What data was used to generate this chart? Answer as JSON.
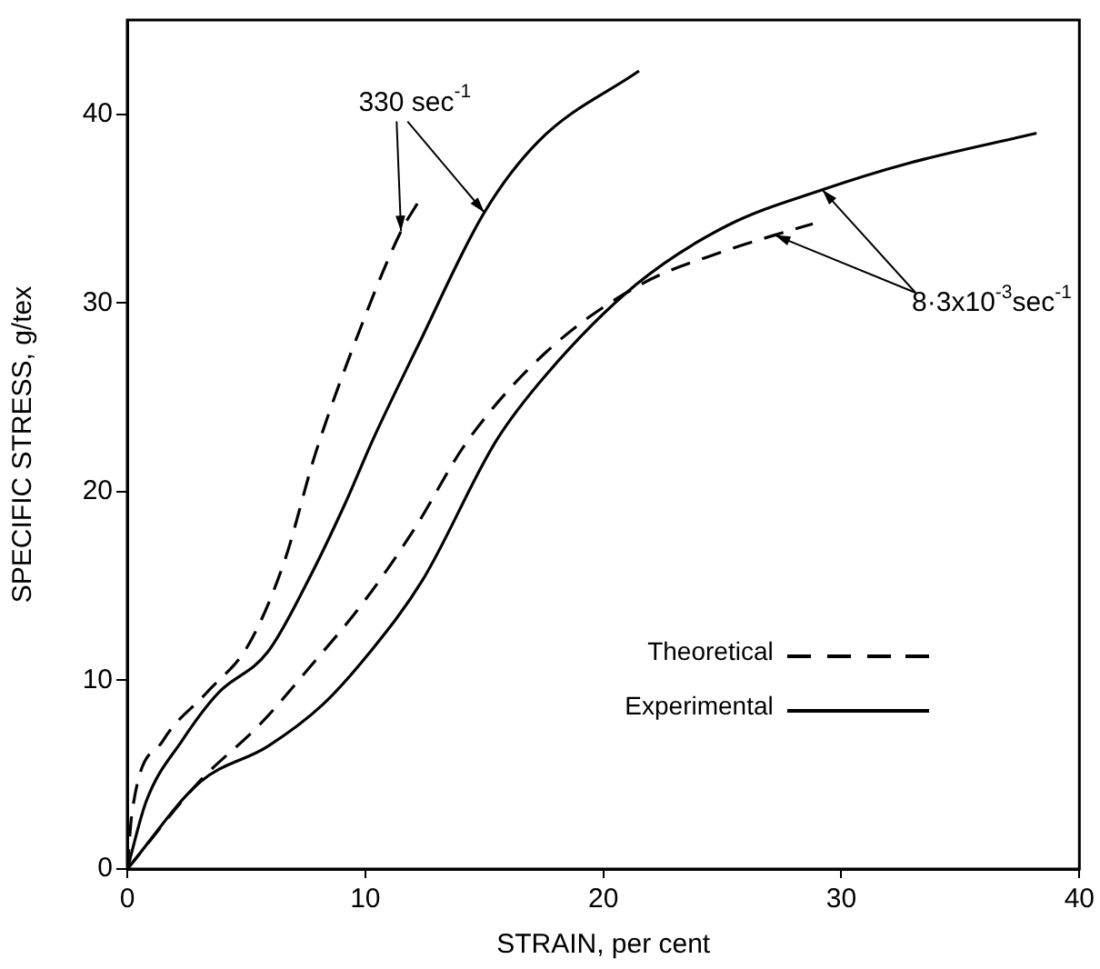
{
  "chart_data": {
    "type": "line",
    "xlabel": "STRAIN, per cent",
    "ylabel": "SPECIFIC STRESS, g/tex",
    "xlim": [
      0,
      40
    ],
    "xticks": [
      0,
      10,
      20,
      30,
      40
    ],
    "ylim": [
      0,
      45
    ],
    "yticks": [
      0,
      10,
      20,
      30,
      40
    ],
    "grid": false,
    "legend": "bottom right",
    "marker": "none",
    "annotations": [
      {
        "text": "330 sec$^{-1}$",
        "x": 11.5,
        "y": 33.8
      },
      {
        "text": "8·3x10$^{-3}$sec$^{-1}$",
        "x": 27.2,
        "y": 33.6
      }
    ],
    "series": [
      {
        "name": "Theoretical",
        "color": "#000000",
        "line_style": "dashed",
        "x": [
          0,
          0.2,
          1.5,
          3.3,
          5.1,
          6.6,
          7.9,
          9.9,
          11.5,
          12.2
        ],
        "values": [
          0,
          3,
          6.8,
          9.3,
          11.9,
          16.3,
          22,
          29,
          33.8,
          35.3
        ]
      },
      {
        "name": "Experimental",
        "color": "#000000",
        "line_style": "solid",
        "x": [
          0,
          0.8,
          2.3,
          3.8,
          5.9,
          7.6,
          9.2,
          10.3,
          12.2,
          15,
          17.3,
          21.5
        ],
        "values": [
          0,
          3.6,
          6.8,
          9.3,
          11.5,
          15.3,
          19.5,
          22.7,
          27.7,
          34.8,
          38.6,
          42.3
        ]
      },
      {
        "color": "#000000",
        "line_style": "dashed",
        "x": [
          0,
          3,
          5.6,
          7.6,
          9.9,
          12,
          14.3,
          17.6,
          21.6,
          25.2,
          27.2,
          28.8
        ],
        "values": [
          0,
          4.6,
          7.7,
          10.6,
          14.1,
          17.9,
          22.7,
          27.4,
          31,
          32.8,
          33.6,
          34.2
        ]
      },
      {
        "color": "#000000",
        "line_style": "solid",
        "x": [
          0,
          3.05,
          5.9,
          8.2,
          10.2,
          12.4,
          15.5,
          17.6,
          21.4,
          25.2,
          29.2,
          32.8,
          38.2
        ],
        "values": [
          0,
          4.6,
          6.5,
          8.7,
          11.5,
          15.3,
          22.7,
          26.2,
          31,
          34.1,
          36,
          37.4,
          39
        ]
      }
    ]
  }
}
